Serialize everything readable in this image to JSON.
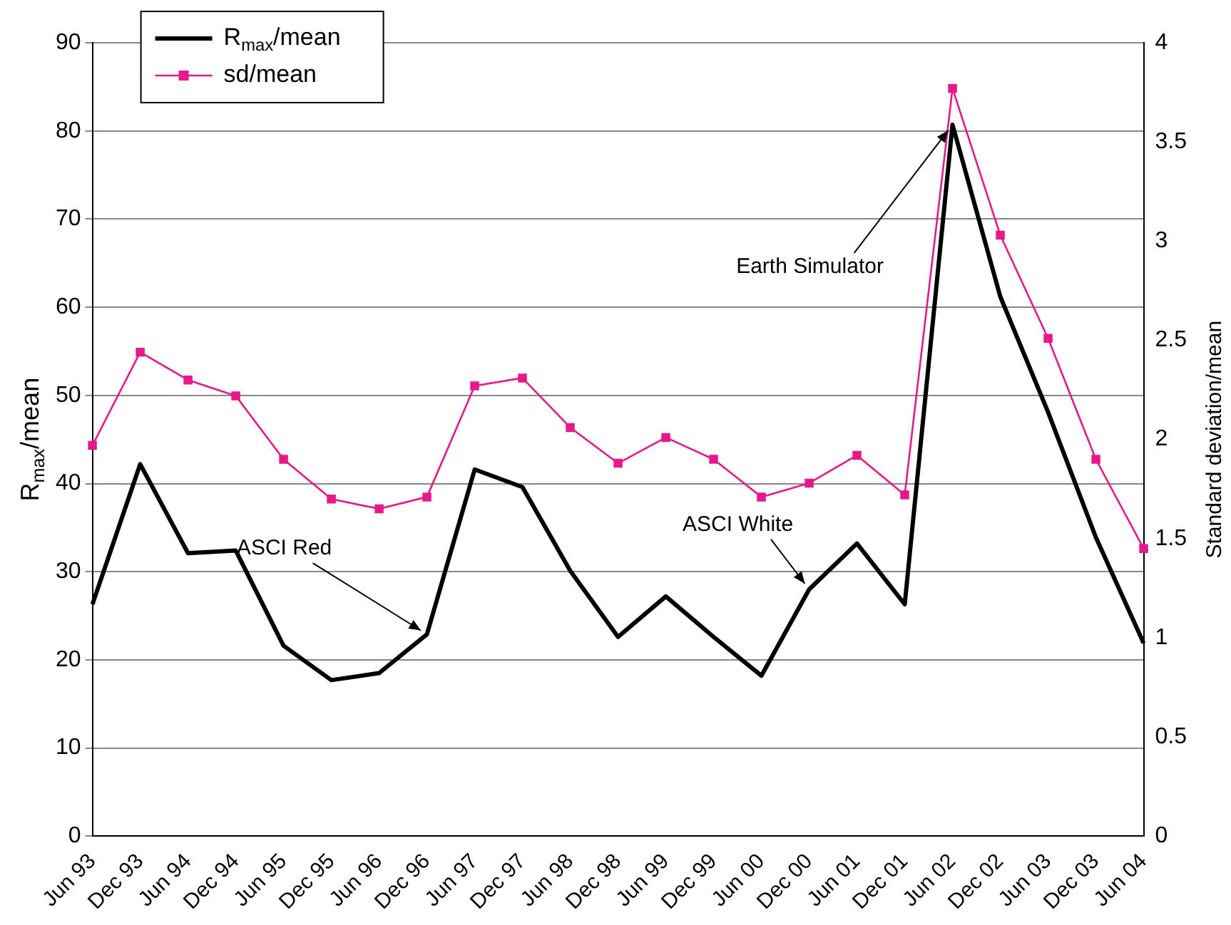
{
  "chart_data": {
    "type": "line",
    "ylabel": "R$_{max}$/mean",
    "y2label": "Standard deviation/mean",
    "categories": [
      "Jun 93",
      "Dec 93",
      "Jun 94",
      "Dec 94",
      "Jun 95",
      "Dec 95",
      "Jun 96",
      "Dec 96",
      "Jun 97",
      "Dec 97",
      "Jun 98",
      "Dec 98",
      "Jun 99",
      "Dec 99",
      "Jun 00",
      "Dec 00",
      "Jun 01",
      "Dec 01",
      "Jun 02",
      "Dec 02",
      "Jun 03",
      "Dec 03",
      "Jun 04"
    ],
    "series": [
      {
        "name": "R$_{max}$/mean",
        "color": "#000000",
        "marker": "none",
        "values": [
          26.3,
          42.2,
          32.1,
          32.4,
          21.6,
          17.7,
          18.5,
          22.9,
          41.6,
          39.6,
          30.1,
          22.6,
          27.2,
          22.6,
          18.2,
          28.0,
          33.2,
          26.3,
          80.7,
          61.2,
          48.1,
          33.9,
          21.9
        ]
      },
      {
        "name": "sd/mean",
        "color": "#e6198c",
        "marker": "square",
        "axis": "y2",
        "values": [
          1.97,
          2.44,
          2.3,
          2.22,
          1.9,
          1.7,
          1.65,
          1.71,
          2.27,
          2.31,
          2.06,
          1.88,
          2.01,
          1.9,
          1.71,
          1.78,
          1.92,
          1.72,
          3.77,
          3.03,
          2.51,
          1.9,
          1.45
        ]
      }
    ],
    "ylim": [
      0,
      90
    ],
    "yticks": [
      0,
      10,
      20,
      30,
      40,
      50,
      60,
      70,
      80,
      90
    ],
    "y2lim": [
      0,
      4
    ],
    "y2ticks": [
      0,
      0.5,
      1,
      1.5,
      2,
      2.5,
      3,
      3.5,
      4
    ],
    "grid": "y",
    "legend": "top left",
    "annotations": [
      {
        "text": "ASCI Red",
        "x": "Dec 96",
        "y": 22.9
      },
      {
        "text": "ASCI White",
        "x": "Dec 00",
        "y": 28.0
      },
      {
        "text": "Earth Simulator",
        "x": "Jun 02",
        "y": 80.7
      }
    ]
  }
}
